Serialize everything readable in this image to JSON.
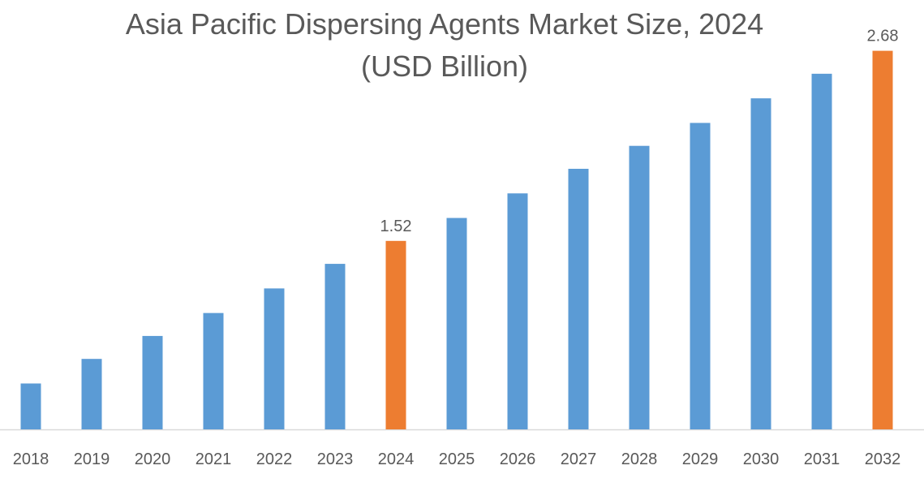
{
  "chart_data": {
    "type": "bar",
    "title": "Asia Pacific Dispersing Agents Market  Size, 2024",
    "subtitle": "(USD Billion)",
    "xlabel": "",
    "ylabel": "",
    "categories": [
      "2018",
      "2019",
      "2020",
      "2021",
      "2022",
      "2023",
      "2024",
      "2025",
      "2026",
      "2027",
      "2028",
      "2029",
      "2030",
      "2031",
      "2032"
    ],
    "values": [
      0.65,
      0.8,
      0.94,
      1.08,
      1.23,
      1.38,
      1.52,
      1.66,
      1.81,
      1.96,
      2.1,
      2.24,
      2.39,
      2.54,
      2.68
    ],
    "data_labels": {
      "2024": "1.52",
      "2032": "2.68"
    },
    "highlighted": [
      "2024",
      "2032"
    ],
    "ylim": [
      0.37,
      2.99
    ],
    "grid": false,
    "legend": "none",
    "colors": {
      "bar": "#5B9BD5",
      "highlight": "#ED7D31",
      "axis": "#D9D9D9",
      "text": "#595959"
    }
  }
}
